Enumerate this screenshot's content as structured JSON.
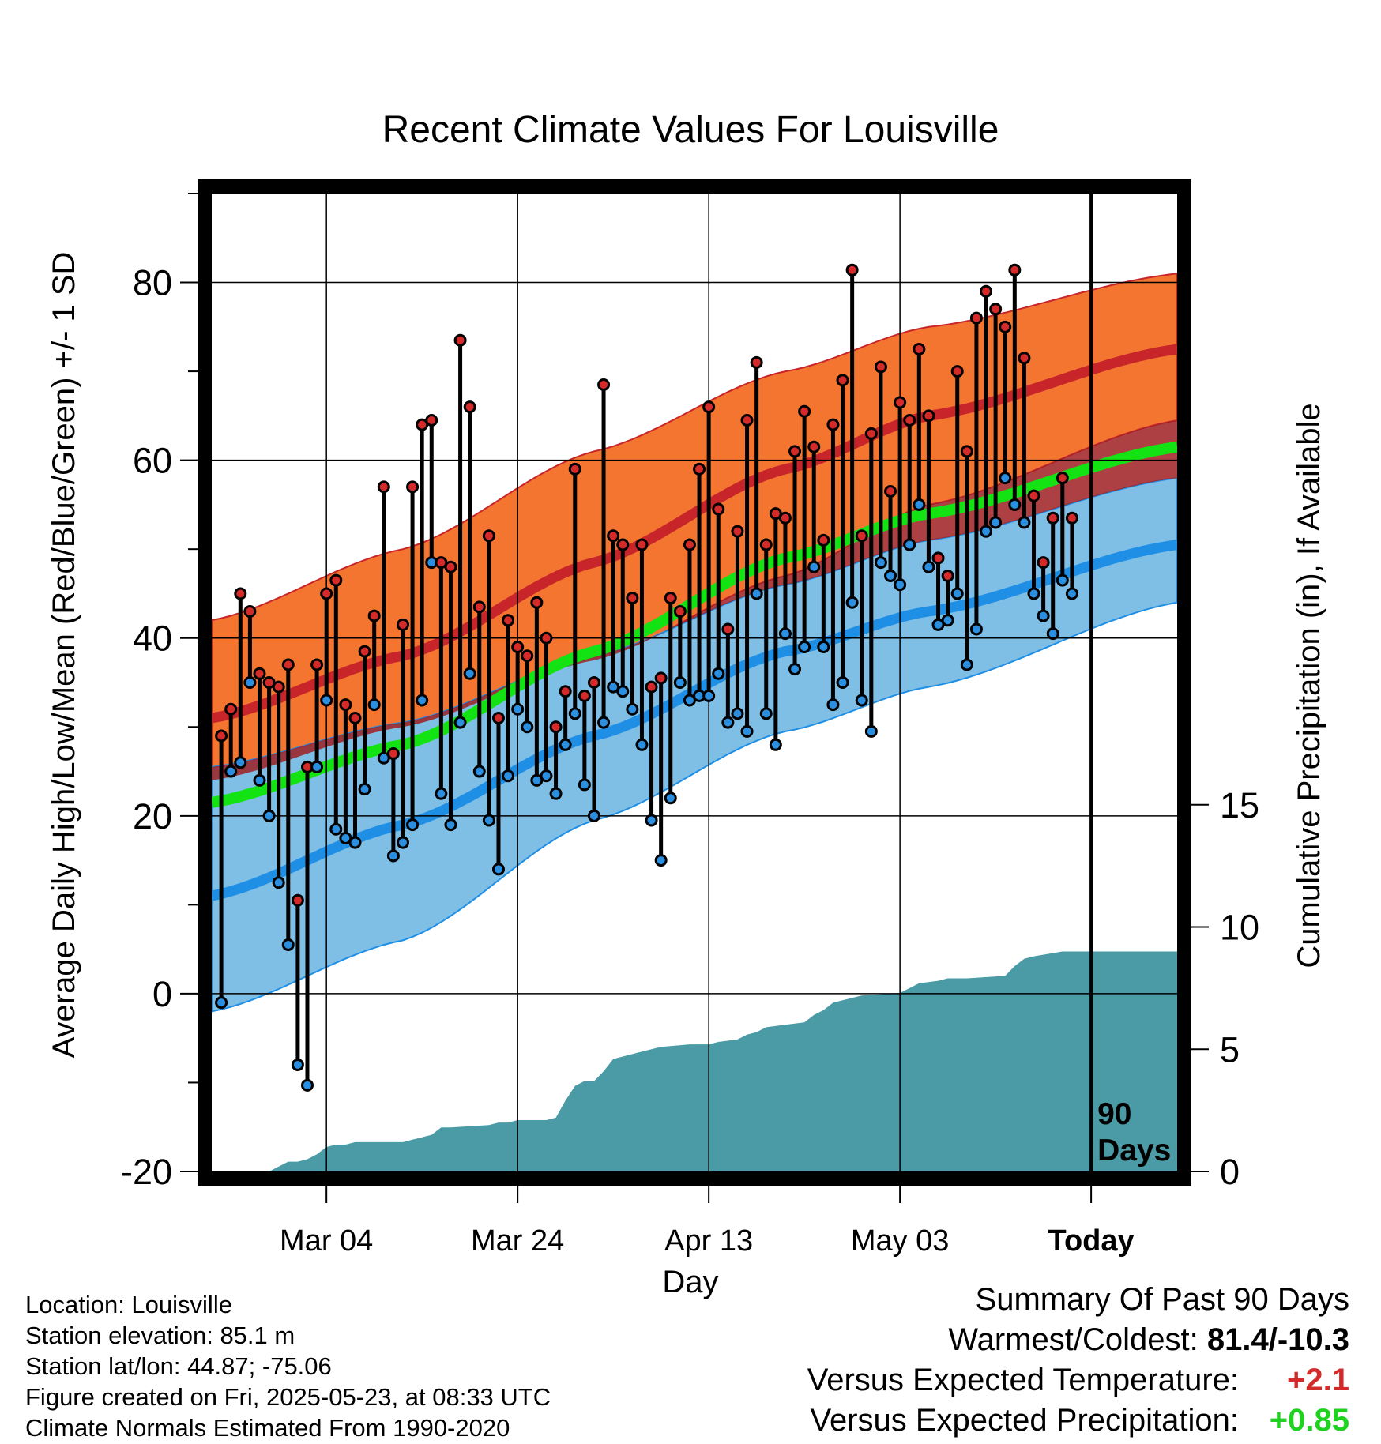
{
  "colors": {
    "high_band": "#f37530",
    "high_mean": "#c8252b",
    "low_band": "#7fbfe6",
    "low_mean": "#1f8fe6",
    "mean": "#13e313",
    "precip": "#4a9ba5",
    "high_dot": "#d52a2a",
    "low_dot": "#2a8fe0",
    "warm_value": "#d52a2a",
    "precip_value": "#1fd21f"
  },
  "chart_data": {
    "type": "line",
    "title": "Recent Climate Values For Louisville",
    "xlabel": "Day",
    "ylabel": "Average Daily High/Low/Mean (Red/Blue/Green) +/- 1 SD",
    "y2label": "Cumulative Precipitation (in), If Available",
    "x_tick_labels": [
      "Mar 04",
      "Mar 24",
      "Apr 13",
      "May 03",
      "Today"
    ],
    "x_tick_days": [
      12,
      32,
      52,
      72,
      92
    ],
    "x_range": [
      0,
      101
    ],
    "ylim": [
      -20,
      90
    ],
    "y_ticks": [
      -20,
      0,
      20,
      40,
      60,
      80
    ],
    "y2lim": [
      0,
      40
    ],
    "y2_ticks": [
      0,
      5,
      10,
      15
    ],
    "grid": true,
    "today_day": 92,
    "today_label": "90\nDays",
    "normals": {
      "high_upper": [
        [
          0,
          42
        ],
        [
          20,
          50
        ],
        [
          40,
          61
        ],
        [
          60,
          70
        ],
        [
          75,
          75
        ],
        [
          101,
          81
        ]
      ],
      "high_mean": [
        [
          0,
          31
        ],
        [
          20,
          38
        ],
        [
          40,
          48.5
        ],
        [
          60,
          59
        ],
        [
          75,
          65
        ],
        [
          101,
          72.5
        ]
      ],
      "high_lower": [
        [
          0,
          24
        ],
        [
          20,
          30
        ],
        [
          40,
          37.5
        ],
        [
          60,
          47
        ],
        [
          75,
          55
        ],
        [
          101,
          64.5
        ]
      ],
      "mean": [
        [
          0,
          21.5
        ],
        [
          20,
          28
        ],
        [
          40,
          38.5
        ],
        [
          60,
          49
        ],
        [
          75,
          54
        ],
        [
          101,
          61.5
        ]
      ],
      "low_upper": [
        [
          0,
          25.5
        ],
        [
          20,
          30.5
        ],
        [
          40,
          38
        ],
        [
          60,
          46
        ],
        [
          75,
          51
        ],
        [
          101,
          58
        ]
      ],
      "low_mean": [
        [
          0,
          11
        ],
        [
          20,
          19
        ],
        [
          40,
          29
        ],
        [
          60,
          38.5
        ],
        [
          75,
          43
        ],
        [
          101,
          50.5
        ]
      ],
      "low_lower": [
        [
          0,
          -2
        ],
        [
          20,
          6
        ],
        [
          40,
          19.5
        ],
        [
          60,
          29.5
        ],
        [
          75,
          34.5
        ],
        [
          101,
          44
        ]
      ]
    },
    "daily": [
      {
        "day": 1,
        "high": 29,
        "low": -1
      },
      {
        "day": 2,
        "high": 32,
        "low": 25
      },
      {
        "day": 3,
        "high": 45,
        "low": 26
      },
      {
        "day": 4,
        "high": 43,
        "low": 35
      },
      {
        "day": 5,
        "high": 36,
        "low": 24
      },
      {
        "day": 6,
        "high": 35,
        "low": 20
      },
      {
        "day": 7,
        "high": 34.5,
        "low": 12.5
      },
      {
        "day": 8,
        "high": 37,
        "low": 5.5
      },
      {
        "day": 9,
        "high": 10.5,
        "low": -8
      },
      {
        "day": 10,
        "high": 25.5,
        "low": -10.3
      },
      {
        "day": 11,
        "high": 37,
        "low": 25.5
      },
      {
        "day": 12,
        "high": 45,
        "low": 33
      },
      {
        "day": 13,
        "high": 46.5,
        "low": 18.5
      },
      {
        "day": 14,
        "high": 32.5,
        "low": 17.5
      },
      {
        "day": 15,
        "high": 31,
        "low": 17
      },
      {
        "day": 16,
        "high": 38.5,
        "low": 23
      },
      {
        "day": 17,
        "high": 42.5,
        "low": 32.5
      },
      {
        "day": 18,
        "high": 57,
        "low": 26.5
      },
      {
        "day": 19,
        "high": 27,
        "low": 15.5
      },
      {
        "day": 20,
        "high": 41.5,
        "low": 17
      },
      {
        "day": 21,
        "high": 57,
        "low": 19
      },
      {
        "day": 22,
        "high": 64,
        "low": 33
      },
      {
        "day": 23,
        "high": 64.5,
        "low": 48.5
      },
      {
        "day": 24,
        "high": 48.5,
        "low": 22.5
      },
      {
        "day": 25,
        "high": 48,
        "low": 19
      },
      {
        "day": 26,
        "high": 73.5,
        "low": 30.5
      },
      {
        "day": 27,
        "high": 66,
        "low": 36
      },
      {
        "day": 28,
        "high": 43.5,
        "low": 25
      },
      {
        "day": 29,
        "high": 51.5,
        "low": 19.5
      },
      {
        "day": 30,
        "high": 31,
        "low": 14
      },
      {
        "day": 31,
        "high": 42,
        "low": 24.5
      },
      {
        "day": 32,
        "high": 39,
        "low": 32
      },
      {
        "day": 33,
        "high": 38,
        "low": 30
      },
      {
        "day": 34,
        "high": 44,
        "low": 24
      },
      {
        "day": 35,
        "high": 40,
        "low": 24.5
      },
      {
        "day": 36,
        "high": 30,
        "low": 22.5
      },
      {
        "day": 37,
        "high": 34,
        "low": 28
      },
      {
        "day": 38,
        "high": 59,
        "low": 31.5
      },
      {
        "day": 39,
        "high": 33.5,
        "low": 23.5
      },
      {
        "day": 40,
        "high": 35,
        "low": 20
      },
      {
        "day": 41,
        "high": 68.5,
        "low": 30.5
      },
      {
        "day": 42,
        "high": 51.5,
        "low": 34.5
      },
      {
        "day": 43,
        "high": 50.5,
        "low": 34
      },
      {
        "day": 44,
        "high": 44.5,
        "low": 32
      },
      {
        "day": 45,
        "high": 50.5,
        "low": 28
      },
      {
        "day": 46,
        "high": 34.5,
        "low": 19.5
      },
      {
        "day": 47,
        "high": 35.5,
        "low": 15
      },
      {
        "day": 48,
        "high": 44.5,
        "low": 22
      },
      {
        "day": 49,
        "high": 43,
        "low": 35
      },
      {
        "day": 50,
        "high": 50.5,
        "low": 33
      },
      {
        "day": 51,
        "high": 59,
        "low": 33.5
      },
      {
        "day": 52,
        "high": 66,
        "low": 33.5
      },
      {
        "day": 53,
        "high": 54.5,
        "low": 36
      },
      {
        "day": 54,
        "high": 41,
        "low": 30.5
      },
      {
        "day": 55,
        "high": 52,
        "low": 31.5
      },
      {
        "day": 56,
        "high": 64.5,
        "low": 29.5
      },
      {
        "day": 57,
        "high": 71,
        "low": 45
      },
      {
        "day": 58,
        "high": 50.5,
        "low": 31.5
      },
      {
        "day": 59,
        "high": 54,
        "low": 28
      },
      {
        "day": 60,
        "high": 53.5,
        "low": 40.5
      },
      {
        "day": 61,
        "high": 61,
        "low": 36.5
      },
      {
        "day": 62,
        "high": 65.5,
        "low": 39
      },
      {
        "day": 63,
        "high": 61.5,
        "low": 48
      },
      {
        "day": 64,
        "high": 51,
        "low": 39
      },
      {
        "day": 65,
        "high": 64,
        "low": 32.5
      },
      {
        "day": 66,
        "high": 69,
        "low": 35
      },
      {
        "day": 67,
        "high": 81.4,
        "low": 44
      },
      {
        "day": 68,
        "high": 51.5,
        "low": 33
      },
      {
        "day": 69,
        "high": 63,
        "low": 29.5
      },
      {
        "day": 70,
        "high": 70.5,
        "low": 48.5
      },
      {
        "day": 71,
        "high": 56.5,
        "low": 47
      },
      {
        "day": 72,
        "high": 66.5,
        "low": 46
      },
      {
        "day": 73,
        "high": 64.5,
        "low": 50.5
      },
      {
        "day": 74,
        "high": 72.5,
        "low": 55
      },
      {
        "day": 75,
        "high": 65,
        "low": 48
      },
      {
        "day": 76,
        "high": 49,
        "low": 41.5
      },
      {
        "day": 77,
        "high": 47,
        "low": 42
      },
      {
        "day": 78,
        "high": 70,
        "low": 45
      },
      {
        "day": 79,
        "high": 61,
        "low": 37
      },
      {
        "day": 80,
        "high": 76,
        "low": 41
      },
      {
        "day": 81,
        "high": 79,
        "low": 52
      },
      {
        "day": 82,
        "high": 77,
        "low": 53
      },
      {
        "day": 83,
        "high": 75,
        "low": 58
      },
      {
        "day": 84,
        "high": 81.4,
        "low": 55
      },
      {
        "day": 85,
        "high": 71.5,
        "low": 53
      },
      {
        "day": 86,
        "high": 56,
        "low": 45
      },
      {
        "day": 87,
        "high": 48.5,
        "low": 42.5
      },
      {
        "day": 88,
        "high": 53.5,
        "low": 40.5
      },
      {
        "day": 89,
        "high": 58,
        "low": 46.5
      },
      {
        "day": 90,
        "high": 53.5,
        "low": 45
      }
    ],
    "precip_cumulative": [
      [
        0,
        0
      ],
      [
        6,
        0
      ],
      [
        7,
        0.2
      ],
      [
        8,
        0.4
      ],
      [
        9,
        0.4
      ],
      [
        10,
        0.5
      ],
      [
        11,
        0.7
      ],
      [
        12,
        1.0
      ],
      [
        13,
        1.1
      ],
      [
        14,
        1.1
      ],
      [
        15,
        1.2
      ],
      [
        20,
        1.2
      ],
      [
        21,
        1.3
      ],
      [
        22,
        1.4
      ],
      [
        23,
        1.5
      ],
      [
        24,
        1.8
      ],
      [
        25,
        1.8
      ],
      [
        29,
        1.9
      ],
      [
        30,
        2.0
      ],
      [
        31,
        2.0
      ],
      [
        32,
        2.1
      ],
      [
        35,
        2.1
      ],
      [
        36,
        2.2
      ],
      [
        37,
        2.9
      ],
      [
        38,
        3.5
      ],
      [
        39,
        3.7
      ],
      [
        40,
        3.7
      ],
      [
        41,
        4.1
      ],
      [
        42,
        4.6
      ],
      [
        43,
        4.7
      ],
      [
        44,
        4.8
      ],
      [
        45,
        4.9
      ],
      [
        46,
        5.0
      ],
      [
        47,
        5.1
      ],
      [
        50,
        5.2
      ],
      [
        52,
        5.2
      ],
      [
        53,
        5.3
      ],
      [
        55,
        5.4
      ],
      [
        56,
        5.6
      ],
      [
        57,
        5.7
      ],
      [
        58,
        5.9
      ],
      [
        60,
        6.0
      ],
      [
        62,
        6.1
      ],
      [
        63,
        6.4
      ],
      [
        64,
        6.6
      ],
      [
        65,
        6.9
      ],
      [
        66,
        7.0
      ],
      [
        67,
        7.1
      ],
      [
        68,
        7.2
      ],
      [
        72,
        7.3
      ],
      [
        73,
        7.5
      ],
      [
        74,
        7.7
      ],
      [
        76,
        7.8
      ],
      [
        77,
        7.9
      ],
      [
        79,
        7.9
      ],
      [
        83,
        8.0
      ],
      [
        84,
        8.4
      ],
      [
        85,
        8.7
      ],
      [
        86,
        8.8
      ],
      [
        89,
        9.0
      ],
      [
        101,
        9.0
      ]
    ]
  },
  "info": {
    "location": "Location: Louisville",
    "elevation": "Station elevation: 85.1 m",
    "latlon": "Station lat/lon: 44.87; -75.06",
    "created": "Figure created on Fri, 2025-05-23, at 08:33 UTC",
    "normals": "Climate Normals Estimated From 1990-2020"
  },
  "summary": {
    "heading": "Summary Of Past 90 Days",
    "warmest_label": "Warmest/Coldest:",
    "warmest_value": "81.4/-10.3",
    "temp_label": "Versus Expected Temperature:",
    "temp_value": "+2.1",
    "precip_label": "Versus Expected Precipitation:",
    "precip_value": "+0.85"
  }
}
